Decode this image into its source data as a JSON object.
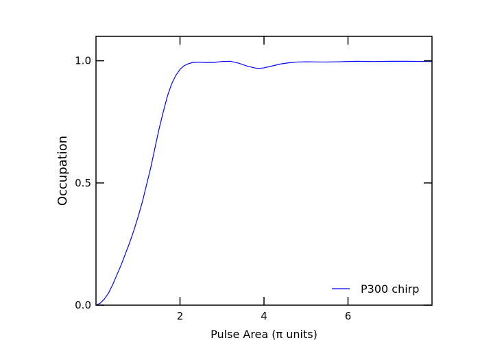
{
  "chart_data": {
    "type": "line",
    "title": "",
    "xlabel": "Pulse Area (π units)",
    "ylabel": "Occupation",
    "xlim": [
      0,
      8
    ],
    "ylim": [
      0,
      1.1
    ],
    "x_ticks": [
      2,
      4,
      6
    ],
    "x_tick_labels": [
      "2",
      "4",
      "6"
    ],
    "y_ticks": [
      0.0,
      0.5,
      1.0
    ],
    "y_tick_labels": [
      "0.0",
      "0.5",
      "1.0"
    ],
    "grid": false,
    "legend_position": "lower-right",
    "series": [
      {
        "name": "P300 chirp",
        "color": "#0000ff",
        "x": [
          0,
          0.1,
          0.2,
          0.3,
          0.4,
          0.5,
          0.6,
          0.7,
          0.8,
          0.9,
          1.0,
          1.1,
          1.2,
          1.3,
          1.4,
          1.5,
          1.6,
          1.7,
          1.8,
          1.9,
          2.0,
          2.1,
          2.2,
          2.3,
          2.4,
          2.5,
          2.6,
          2.8,
          3.0,
          3.2,
          3.4,
          3.6,
          3.8,
          3.9,
          4.0,
          4.2,
          4.4,
          4.6,
          4.8,
          5.0,
          5.4,
          5.8,
          6.2,
          6.6,
          7.0,
          7.4,
          8.0
        ],
        "y": [
          0.0,
          0.008,
          0.025,
          0.05,
          0.085,
          0.125,
          0.165,
          0.21,
          0.255,
          0.305,
          0.36,
          0.42,
          0.49,
          0.56,
          0.64,
          0.72,
          0.79,
          0.855,
          0.905,
          0.94,
          0.965,
          0.98,
          0.988,
          0.993,
          0.994,
          0.994,
          0.993,
          0.993,
          0.997,
          0.998,
          0.99,
          0.978,
          0.97,
          0.969,
          0.971,
          0.979,
          0.987,
          0.992,
          0.995,
          0.996,
          0.995,
          0.996,
          0.998,
          0.997,
          0.998,
          0.998,
          0.997
        ]
      }
    ]
  }
}
